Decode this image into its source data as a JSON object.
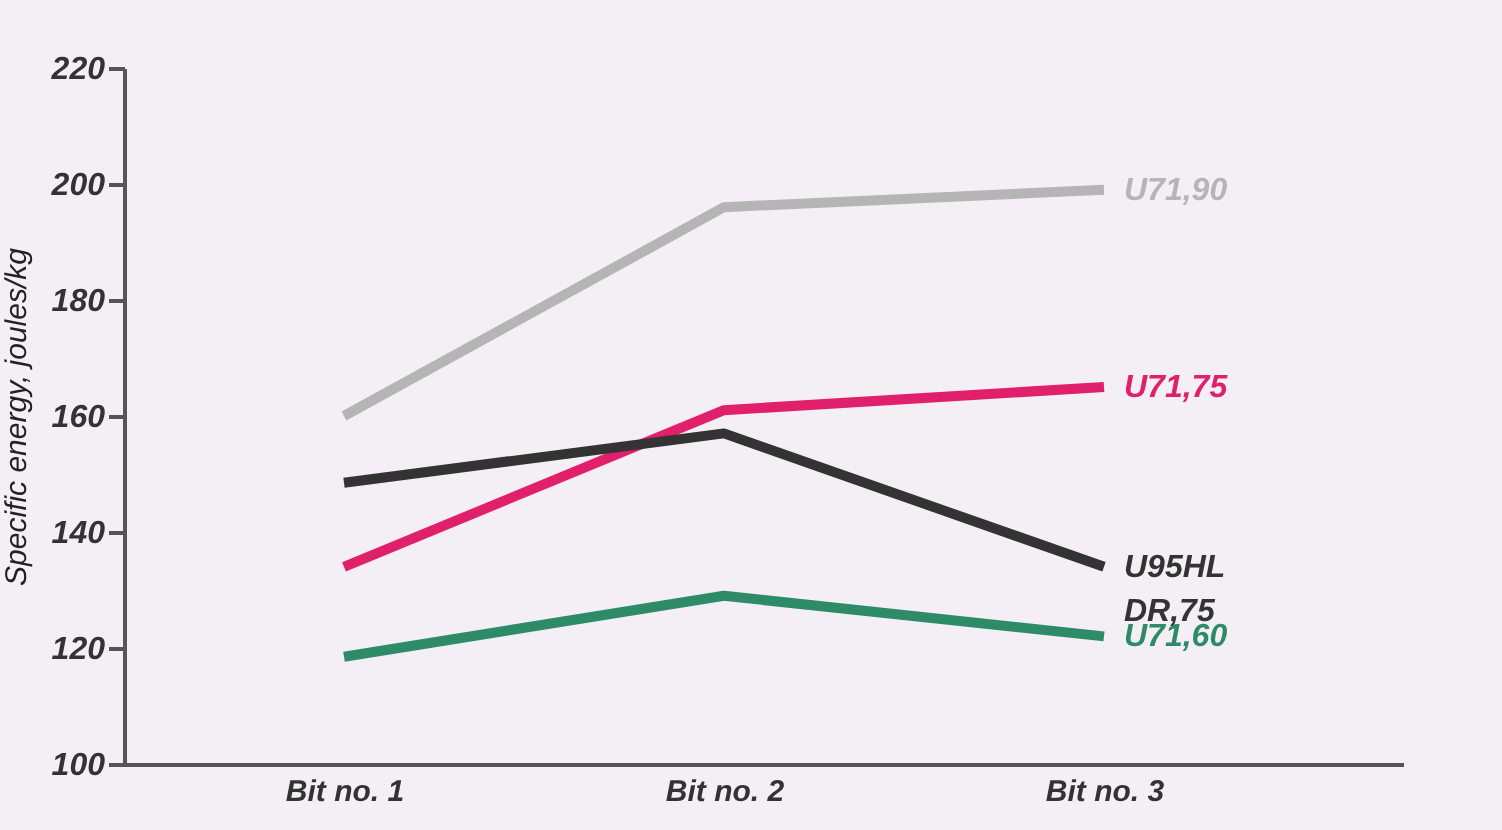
{
  "chart_data": {
    "type": "line",
    "ylabel": "Specific energy, joules/kg",
    "categories": [
      "Bit no. 1",
      "Bit no. 2",
      "Bit no. 3"
    ],
    "series": [
      {
        "name": "U71,90",
        "color": "#b5b5b5",
        "values": [
          160,
          196,
          199
        ]
      },
      {
        "name": "U71,75",
        "color": "#e0206a",
        "values": [
          134,
          161,
          165
        ]
      },
      {
        "name": "U95HL DR,75",
        "color": "#333333",
        "values": [
          148.5,
          157,
          134
        ]
      },
      {
        "name": "U71,60",
        "color": "#2e8b68",
        "values": [
          118.5,
          129,
          122
        ]
      }
    ],
    "ylim": [
      100,
      220
    ],
    "yticks": [
      100,
      120,
      140,
      160,
      180,
      200,
      220
    ],
    "grid": false,
    "legend": false,
    "marker": "none",
    "line_style": "solid"
  }
}
